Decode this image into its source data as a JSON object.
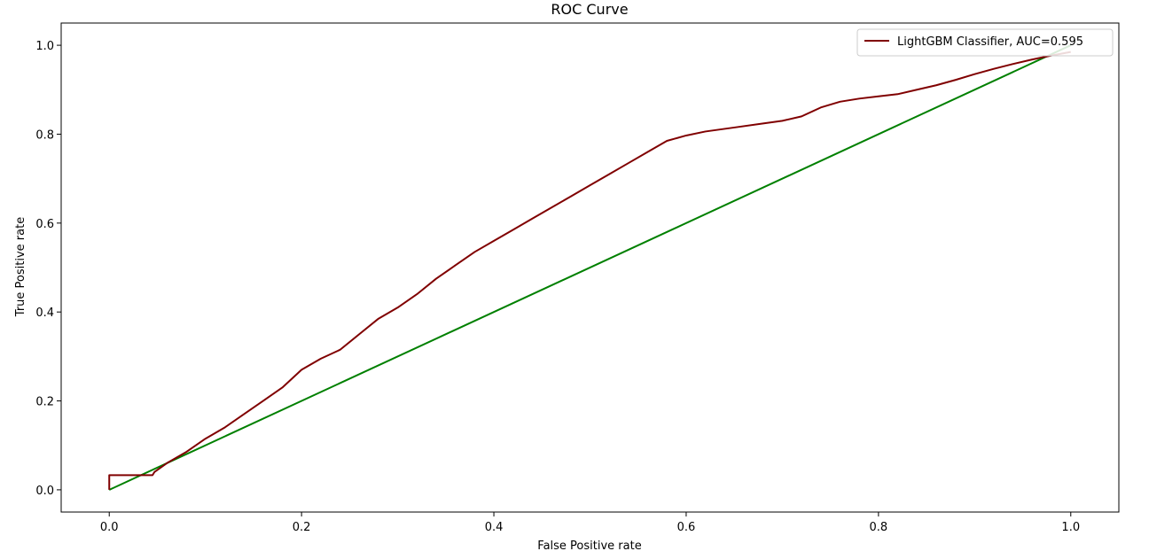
{
  "chart_data": {
    "type": "line",
    "title": "ROC Curve",
    "xlabel": "False Positive rate",
    "ylabel": "True Positive rate",
    "xlim": [
      -0.05,
      1.05
    ],
    "ylim": [
      -0.05,
      1.05
    ],
    "xticks": [
      0.0,
      0.2,
      0.4,
      0.6,
      0.8,
      1.0
    ],
    "yticks": [
      0.0,
      0.2,
      0.4,
      0.6,
      0.8,
      1.0
    ],
    "xtick_labels": [
      "0.0",
      "0.2",
      "0.4",
      "0.6",
      "0.8",
      "1.0"
    ],
    "ytick_labels": [
      "0.0",
      "0.2",
      "0.4",
      "0.6",
      "0.8",
      "1.0"
    ],
    "grid": false,
    "legend_position": "top-right",
    "series": [
      {
        "name": "LightGBM Classifier, AUC=0.595",
        "color": "#800000",
        "in_legend": true,
        "x": [
          0.0,
          0.0,
          0.0,
          0.02,
          0.045,
          0.047,
          0.06,
          0.08,
          0.1,
          0.12,
          0.14,
          0.16,
          0.18,
          0.2,
          0.22,
          0.24,
          0.26,
          0.28,
          0.3,
          0.32,
          0.34,
          0.36,
          0.38,
          0.4,
          0.42,
          0.44,
          0.46,
          0.48,
          0.5,
          0.52,
          0.54,
          0.56,
          0.58,
          0.6,
          0.62,
          0.65,
          0.68,
          0.7,
          0.72,
          0.74,
          0.76,
          0.78,
          0.8,
          0.82,
          0.84,
          0.86,
          0.88,
          0.9,
          0.92,
          0.94,
          0.96,
          0.98,
          1.0
        ],
        "y": [
          0.0,
          0.02,
          0.033,
          0.033,
          0.033,
          0.04,
          0.06,
          0.085,
          0.115,
          0.14,
          0.17,
          0.2,
          0.23,
          0.27,
          0.295,
          0.315,
          0.35,
          0.385,
          0.41,
          0.44,
          0.475,
          0.505,
          0.535,
          0.56,
          0.585,
          0.61,
          0.635,
          0.66,
          0.685,
          0.71,
          0.735,
          0.76,
          0.785,
          0.797,
          0.806,
          0.815,
          0.824,
          0.83,
          0.84,
          0.86,
          0.873,
          0.88,
          0.885,
          0.89,
          0.9,
          0.91,
          0.922,
          0.935,
          0.947,
          0.958,
          0.968,
          0.977,
          0.985
        ]
      },
      {
        "name": "",
        "color": "#008000",
        "in_legend": false,
        "x": [
          0.0,
          1.0
        ],
        "y": [
          0.0,
          1.0
        ]
      }
    ]
  }
}
